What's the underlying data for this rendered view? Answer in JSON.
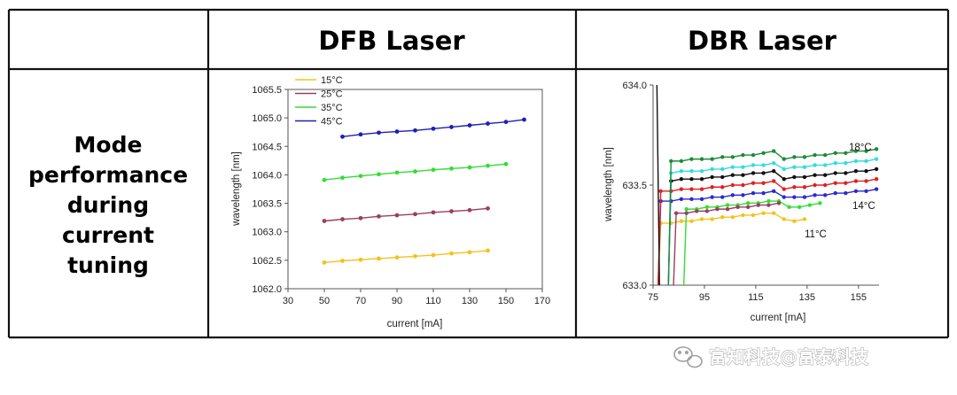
{
  "table": {
    "col_headers": [
      "DFB Laser",
      "DBR Laser"
    ],
    "row_label_lines": [
      "Mode",
      "performance",
      "during",
      "current",
      "tuning"
    ]
  },
  "watermark": {
    "text": "富知科技@富泰科技",
    "icon": "wechat-icon"
  },
  "chart_data": [
    {
      "type": "line",
      "title": "",
      "xlabel": "current [mA]",
      "ylabel": "wavelength [nm]",
      "xlim": [
        30,
        170
      ],
      "ylim": [
        1062.0,
        1065.5
      ],
      "xticks": [
        "30",
        "50",
        "70",
        "90",
        "110",
        "130",
        "150",
        "170"
      ],
      "yticks": [
        "1062.0",
        "1062.5",
        "1063.0",
        "1063.5",
        "1064.0",
        "1064.5",
        "1065.0",
        "1065.5"
      ],
      "grid": false,
      "legend": "top-left",
      "series": [
        {
          "name": "15°C",
          "color": "#f5c21b",
          "x": [
            50,
            60,
            70,
            80,
            90,
            100,
            110,
            120,
            130,
            140
          ],
          "y": [
            1062.46,
            1062.49,
            1062.51,
            1062.53,
            1062.55,
            1062.57,
            1062.59,
            1062.62,
            1062.64,
            1062.67
          ]
        },
        {
          "name": "25°C",
          "color": "#9b3d62",
          "x": [
            50,
            60,
            70,
            80,
            90,
            100,
            110,
            120,
            130,
            140
          ],
          "y": [
            1063.19,
            1063.22,
            1063.24,
            1063.27,
            1063.29,
            1063.31,
            1063.34,
            1063.36,
            1063.38,
            1063.41
          ]
        },
        {
          "name": "35°C",
          "color": "#33dd33",
          "x": [
            50,
            60,
            70,
            80,
            90,
            100,
            110,
            120,
            130,
            140,
            150
          ],
          "y": [
            1063.91,
            1063.95,
            1063.98,
            1064.01,
            1064.04,
            1064.06,
            1064.09,
            1064.11,
            1064.13,
            1064.16,
            1064.19
          ]
        },
        {
          "name": "45°C",
          "color": "#1f1fb5",
          "x": [
            60,
            70,
            80,
            90,
            100,
            110,
            120,
            130,
            140,
            150,
            160
          ],
          "y": [
            1064.67,
            1064.71,
            1064.74,
            1064.76,
            1064.78,
            1064.81,
            1064.84,
            1064.87,
            1064.9,
            1064.93,
            1064.97
          ]
        }
      ]
    },
    {
      "type": "line",
      "title": "",
      "xlabel": "current [mA]",
      "ylabel": "wavelength [nm]",
      "xlim": [
        75,
        163
      ],
      "ylim": [
        633.0,
        634.0
      ],
      "xticks": [
        "75",
        "95",
        "115",
        "135",
        "155"
      ],
      "xtick_values": [
        75,
        95,
        115,
        135,
        155
      ],
      "yticks": [
        "633.0",
        "633.5",
        "634.0"
      ],
      "grid": false,
      "annotations": [
        "18°C",
        "14°C",
        "11°C"
      ],
      "series": [
        {
          "color": "#f5c21b",
          "x": [
            78,
            82,
            86,
            90,
            94,
            98,
            102,
            106,
            110,
            114,
            118,
            122,
            126,
            130,
            134
          ],
          "y": [
            633.31,
            633.31,
            633.32,
            633.32,
            633.33,
            633.33,
            633.34,
            633.34,
            633.35,
            633.35,
            633.36,
            633.36,
            633.33,
            633.32,
            633.33
          ]
        },
        {
          "color": "#33dd33",
          "x": [
            88,
            92,
            96,
            100,
            104,
            108,
            112,
            116,
            120,
            124,
            128,
            132,
            136,
            140
          ],
          "y": [
            633.38,
            633.38,
            633.39,
            633.39,
            633.4,
            633.4,
            633.41,
            633.41,
            633.42,
            633.42,
            633.39,
            633.39,
            633.4,
            633.41
          ]
        },
        {
          "color": "#9b3d62",
          "x": [
            84,
            88,
            92,
            96,
            100,
            104,
            108,
            112,
            116,
            120,
            124
          ],
          "y": [
            633.36,
            633.36,
            633.37,
            633.37,
            633.38,
            633.38,
            633.39,
            633.39,
            633.4,
            633.4,
            633.41
          ]
        },
        {
          "color": "#2a2ad0",
          "x": [
            78,
            82,
            86,
            90,
            94,
            98,
            102,
            106,
            110,
            114,
            118,
            122,
            126,
            130,
            134,
            138,
            142,
            146,
            150,
            154,
            158,
            162
          ],
          "y": [
            633.42,
            633.42,
            633.43,
            633.43,
            633.43,
            633.44,
            633.44,
            633.45,
            633.45,
            633.46,
            633.46,
            633.47,
            633.44,
            633.44,
            633.44,
            633.45,
            633.45,
            633.46,
            633.46,
            633.47,
            633.47,
            633.48
          ]
        },
        {
          "color": "#dd2222",
          "x": [
            78,
            82,
            86,
            90,
            94,
            98,
            102,
            106,
            110,
            114,
            118,
            122,
            126,
            130,
            134,
            138,
            142,
            146,
            150,
            154,
            158,
            162
          ],
          "y": [
            633.47,
            633.47,
            633.48,
            633.48,
            633.48,
            633.49,
            633.49,
            633.5,
            633.5,
            633.51,
            633.51,
            633.52,
            633.48,
            633.49,
            633.49,
            633.5,
            633.5,
            633.51,
            633.51,
            633.52,
            633.52,
            633.53
          ]
        },
        {
          "color": "#111111",
          "x": [
            82,
            86,
            90,
            94,
            98,
            102,
            106,
            110,
            114,
            118,
            122,
            126,
            130,
            134,
            138,
            142,
            146,
            150,
            154,
            158,
            162
          ],
          "y": [
            633.52,
            633.53,
            633.53,
            633.53,
            633.54,
            633.54,
            633.55,
            633.55,
            633.56,
            633.56,
            633.57,
            633.53,
            633.54,
            633.54,
            633.55,
            633.55,
            633.56,
            633.56,
            633.57,
            633.57,
            633.58
          ]
        },
        {
          "color": "#33dddd",
          "x": [
            82,
            86,
            90,
            94,
            98,
            102,
            106,
            110,
            114,
            118,
            122,
            126,
            130,
            134,
            138,
            142,
            146,
            150,
            154,
            158,
            162
          ],
          "y": [
            633.56,
            633.57,
            633.57,
            633.57,
            633.58,
            633.58,
            633.59,
            633.59,
            633.6,
            633.6,
            633.61,
            633.58,
            633.59,
            633.59,
            633.6,
            633.6,
            633.61,
            633.61,
            633.62,
            633.62,
            633.63
          ]
        },
        {
          "color": "#1a8c3a",
          "x": [
            82,
            86,
            90,
            94,
            98,
            102,
            106,
            110,
            114,
            118,
            122,
            126,
            130,
            134,
            138,
            142,
            146,
            150,
            154,
            158,
            162
          ],
          "y": [
            633.62,
            633.62,
            633.63,
            633.63,
            633.63,
            633.64,
            633.64,
            633.65,
            633.65,
            633.66,
            633.67,
            633.63,
            633.64,
            633.64,
            633.65,
            633.65,
            633.66,
            633.66,
            633.67,
            633.67,
            633.68
          ]
        }
      ]
    }
  ]
}
